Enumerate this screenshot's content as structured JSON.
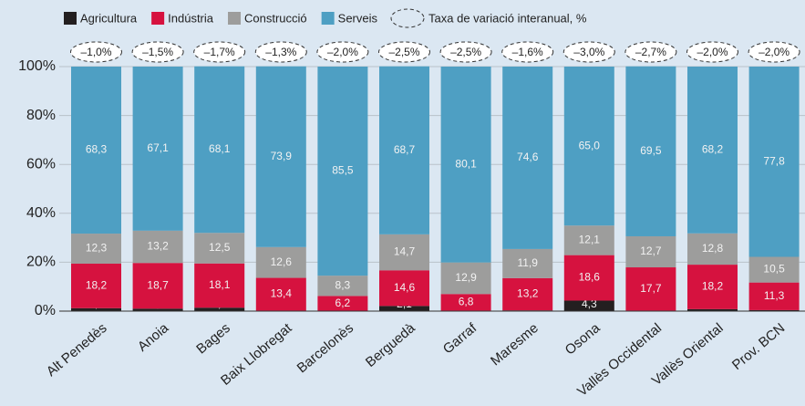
{
  "chart_data": {
    "type": "stacked_bar",
    "categories": [
      "Alt Penedès",
      "Anoia",
      "Bages",
      "Baix Llobregat",
      "Barcelonès",
      "Berguedà",
      "Garraf",
      "Maresme",
      "Osona",
      "Vallès Occidental",
      "Vallès Oriental",
      "Prov. BCN"
    ],
    "series": [
      {
        "name": "Agricultura",
        "color": "#231f20",
        "values": [
          1.2,
          1.0,
          1.4,
          0.2,
          0.0,
          2.1,
          0.2,
          0.3,
          4.3,
          0.2,
          0.8,
          0.4
        ],
        "value_labels": [
          "1,2",
          "1,0",
          "1,4",
          "0,2",
          "0,0",
          "2,1",
          "0,2",
          "0,3",
          "4,3",
          "0,2",
          "0,8",
          "0,4"
        ]
      },
      {
        "name": "Indústria",
        "color": "#d6123f",
        "values": [
          18.2,
          18.7,
          18.1,
          13.4,
          6.2,
          14.6,
          6.8,
          13.2,
          18.6,
          17.7,
          18.2,
          11.3
        ],
        "value_labels": [
          "18,2",
          "18,7",
          "18,1",
          "13,4",
          "6,2",
          "14,6",
          "6,8",
          "13,2",
          "18,6",
          "17,7",
          "18,2",
          "11,3"
        ]
      },
      {
        "name": "Construcció",
        "color": "#9d9d9c",
        "values": [
          12.3,
          13.2,
          12.5,
          12.6,
          8.3,
          14.7,
          12.9,
          11.9,
          12.1,
          12.7,
          12.8,
          10.5
        ],
        "value_labels": [
          "12,3",
          "13,2",
          "12,5",
          "12,6",
          "8,3",
          "14,7",
          "12,9",
          "11,9",
          "12,1",
          "12,7",
          "12,8",
          "10,5"
        ]
      },
      {
        "name": "Serveis",
        "color": "#4e9fc3",
        "values": [
          68.3,
          67.1,
          68.1,
          73.9,
          85.5,
          68.7,
          80.1,
          74.6,
          65.0,
          69.5,
          68.2,
          77.8
        ],
        "value_labels": [
          "68,3",
          "67,1",
          "68,1",
          "73,9",
          "85,5",
          "68,7",
          "80,1",
          "74,6",
          "65,0",
          "69,5",
          "68,2",
          "77,8"
        ]
      }
    ],
    "annotations": {
      "name": "Taxa de variació interanual, %",
      "values": [
        -1.0,
        -1.5,
        -1.7,
        -1.3,
        -2.0,
        -2.5,
        -2.5,
        -1.6,
        -3.0,
        -2.7,
        -2.0,
        -2.0
      ],
      "value_labels": [
        "–1,0%",
        "–1,5%",
        "–1,7%",
        "–1,3%",
        "–2,0%",
        "–2,5%",
        "–2,5%",
        "–1,6%",
        "–3,0%",
        "–2,7%",
        "–2,0%",
        "–2,0%"
      ]
    },
    "ylim": [
      0,
      100
    ],
    "yticks": [
      {
        "value": 0,
        "label": "0%"
      },
      {
        "value": 20,
        "label": "20%"
      },
      {
        "value": 40,
        "label": "40%"
      },
      {
        "value": 60,
        "label": "60%"
      },
      {
        "value": 80,
        "label": "80%"
      },
      {
        "value": 100,
        "label": "100%"
      }
    ],
    "grid": true
  }
}
